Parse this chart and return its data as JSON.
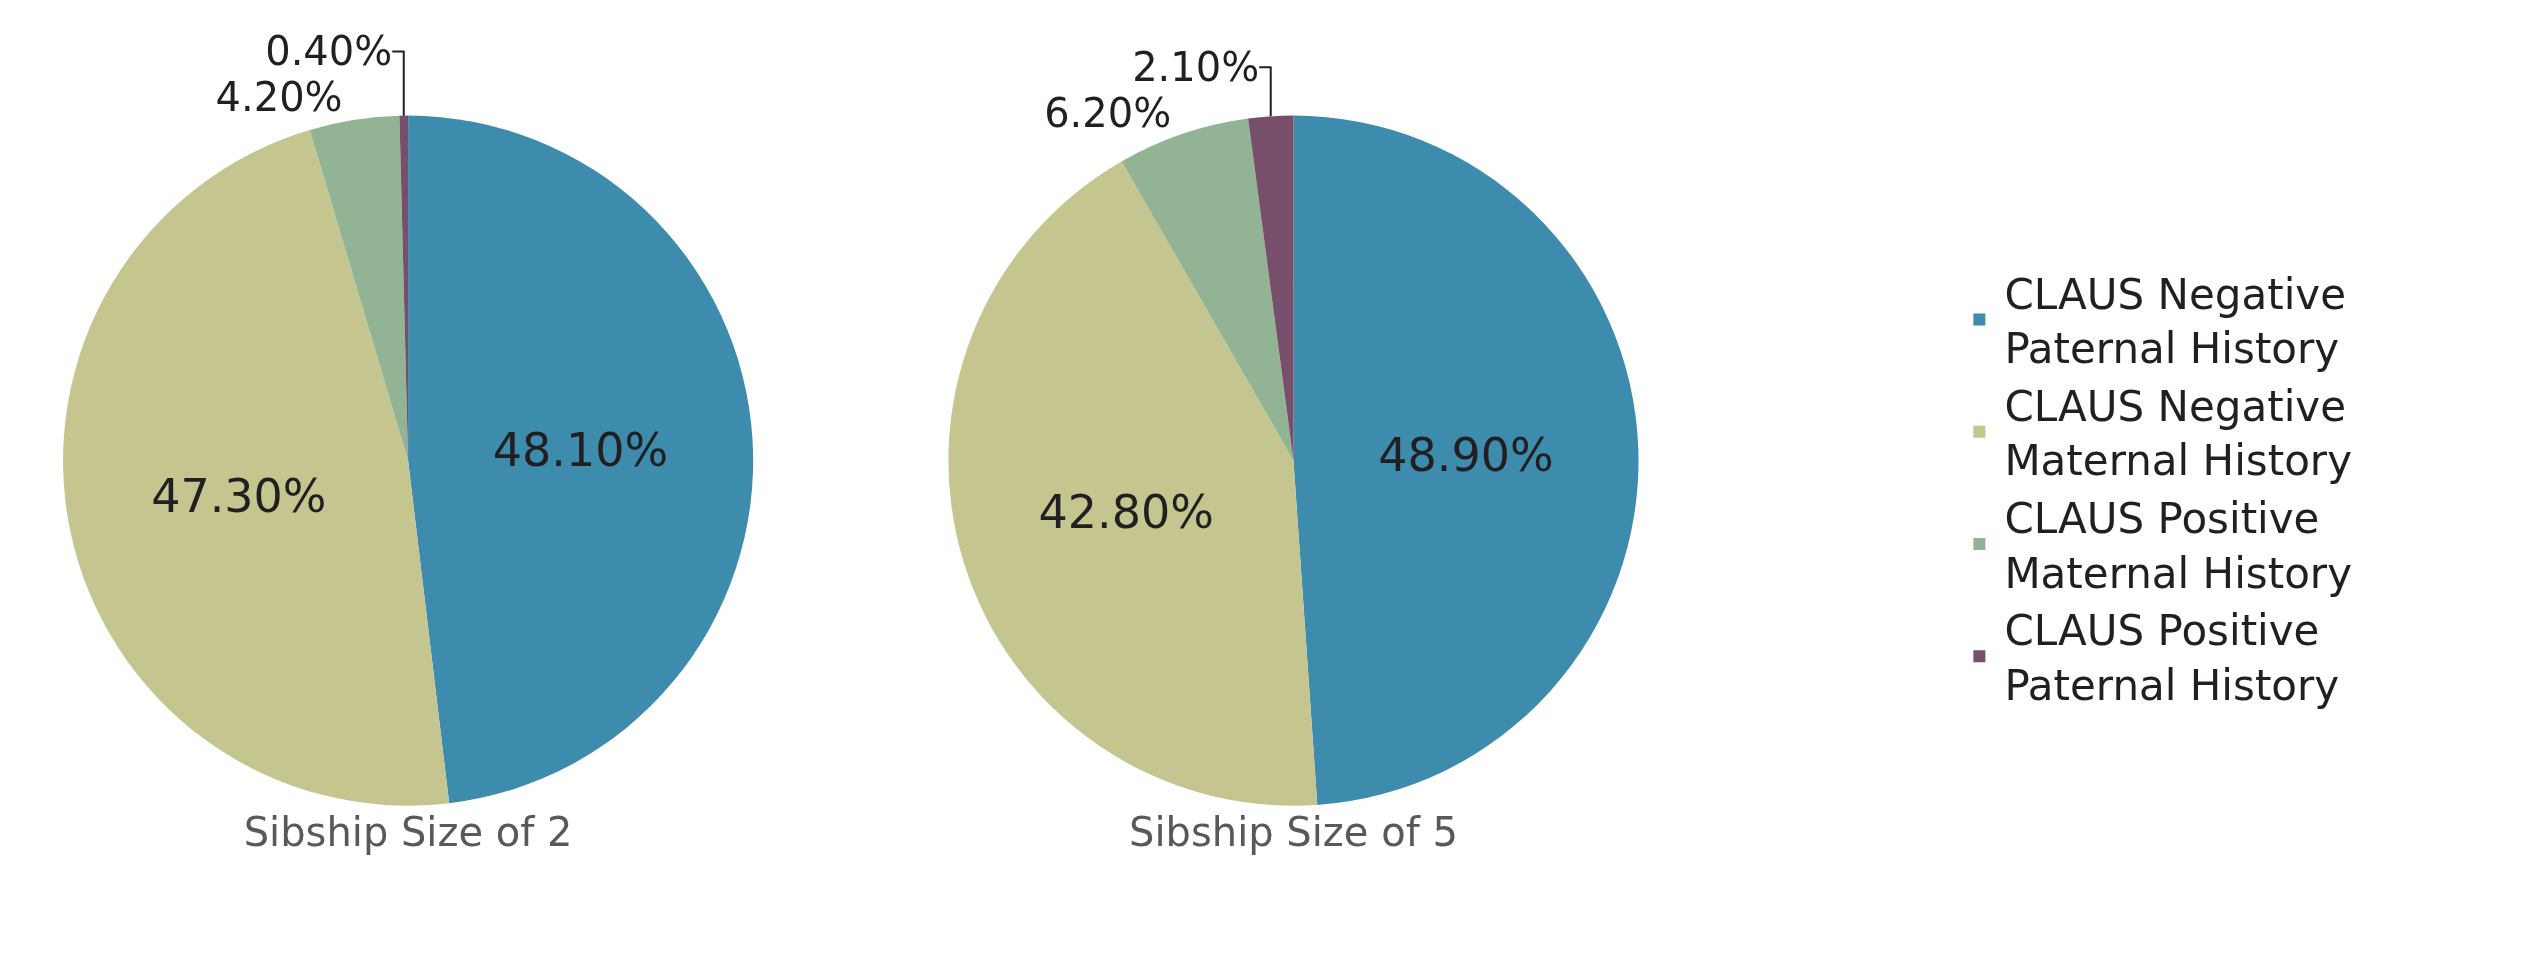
{
  "chart_data": [
    {
      "type": "pie",
      "title": "Sibship Size of 2",
      "categories": [
        "CLAUS Negative Paternal History",
        "CLAUS Negative Maternal History",
        "CLAUS Positive Maternal History",
        "CLAUS Positive Paternal History"
      ],
      "values": [
        48.1,
        47.3,
        4.2,
        0.4
      ],
      "value_labels": [
        "48.10%",
        "47.30%",
        "4.20%",
        "0.40%"
      ],
      "colors": [
        "#3d8bad",
        "#c5c68f",
        "#93b494",
        "#774f6b"
      ],
      "legend": "right"
    },
    {
      "type": "pie",
      "title": "Sibship Size of 5",
      "categories": [
        null,
        null,
        null,
        null
      ],
      "values": [
        48.9,
        42.8,
        6.2,
        2.1
      ],
      "value_labels": [
        "48.90%",
        "42.80%",
        "6.20%",
        "2.10%"
      ],
      "colors": [
        "#3d8bad",
        "#c5c68f",
        "#93b494",
        "#774f6b"
      ]
    }
  ]
}
